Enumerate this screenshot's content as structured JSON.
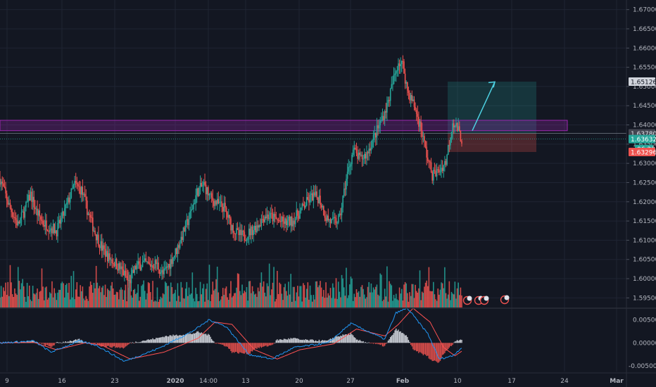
{
  "colors": {
    "background": "#131722",
    "grid": "#1f2433",
    "up": "#26a69a",
    "down": "#ef5350",
    "zone": "#9c27b0",
    "macd_line": "#2196f3",
    "signal_line": "#ff5252",
    "arrow": "#4dd0e1",
    "target_box": "#26a69a",
    "stop_box": "#ef5350"
  },
  "chart_data": [
    {
      "type": "candlestick",
      "title": "",
      "xlabel": "",
      "ylabel": "",
      "ylim": [
        1.5925,
        1.6725
      ],
      "y_ticks": [
        "1.67000",
        "1.66500",
        "1.66000",
        "1.65500",
        "1.65000",
        "1.64500",
        "1.64000",
        "1.63500",
        "1.63000",
        "1.62500",
        "1.62000",
        "1.61500",
        "1.61000",
        "1.60500",
        "1.60000",
        "1.59500"
      ],
      "x_ticks": [
        "9",
        "16",
        "23",
        "2020",
        "14:00",
        "13",
        "20",
        "27",
        "Feb",
        "10",
        "17",
        "24",
        "Mar"
      ],
      "x_ticks_bold": [
        "2020",
        "Feb",
        "Mar"
      ],
      "grid": true,
      "price_tags": [
        {
          "label": "1.65126",
          "value": 1.65126,
          "style": "target"
        },
        {
          "label": "1.63780",
          "value": 1.6378,
          "style": "current"
        },
        {
          "label": "1.63632",
          "value": 1.63632,
          "style": "last"
        },
        {
          "label": "06:22",
          "value": null,
          "style": "timer"
        },
        {
          "label": "1.63296",
          "value": 1.63296,
          "style": "stop"
        }
      ],
      "candle_anchor_closes": [
        [
          0,
          1.626
        ],
        [
          8,
          1.619
        ],
        [
          16,
          1.614
        ],
        [
          22,
          1.618
        ],
        [
          27,
          1.622
        ],
        [
          32,
          1.6175
        ],
        [
          38,
          1.6145
        ],
        [
          44,
          1.6135
        ],
        [
          50,
          1.6125
        ],
        [
          55,
          1.616
        ],
        [
          60,
          1.62
        ],
        [
          66,
          1.6245
        ],
        [
          72,
          1.623
        ],
        [
          78,
          1.617
        ],
        [
          84,
          1.612
        ],
        [
          90,
          1.608
        ],
        [
          96,
          1.6055
        ],
        [
          102,
          1.604
        ],
        [
          108,
          1.602
        ],
        [
          114,
          1.599
        ],
        [
          120,
          1.603
        ],
        [
          126,
          1.604
        ],
        [
          132,
          1.6035
        ],
        [
          138,
          1.604
        ],
        [
          144,
          1.601
        ],
        [
          150,
          1.604
        ],
        [
          156,
          1.6075
        ],
        [
          162,
          1.612
        ],
        [
          168,
          1.6165
        ],
        [
          174,
          1.6225
        ],
        [
          180,
          1.6245
        ],
        [
          186,
          1.621
        ],
        [
          192,
          1.6195
        ],
        [
          198,
          1.6185
        ],
        [
          204,
          1.614
        ],
        [
          210,
          1.6115
        ],
        [
          216,
          1.611
        ],
        [
          222,
          1.6125
        ],
        [
          228,
          1.614
        ],
        [
          234,
          1.6165
        ],
        [
          240,
          1.616
        ],
        [
          246,
          1.615
        ],
        [
          252,
          1.6145
        ],
        [
          258,
          1.615
        ],
        [
          264,
          1.617
        ],
        [
          270,
          1.6195
        ],
        [
          276,
          1.6215
        ],
        [
          282,
          1.621
        ],
        [
          288,
          1.616
        ],
        [
          294,
          1.6145
        ],
        [
          300,
          1.6155
        ],
        [
          306,
          1.626
        ],
        [
          312,
          1.6335
        ],
        [
          318,
          1.631
        ],
        [
          324,
          1.6325
        ],
        [
          330,
          1.6365
        ],
        [
          336,
          1.6405
        ],
        [
          342,
          1.645
        ],
        [
          348,
          1.652
        ],
        [
          352,
          1.6565
        ],
        [
          356,
          1.6555
        ],
        [
          360,
          1.649
        ],
        [
          366,
          1.645
        ],
        [
          372,
          1.639
        ],
        [
          378,
          1.631
        ],
        [
          382,
          1.627
        ],
        [
          388,
          1.628
        ],
        [
          394,
          1.6305
        ],
        [
          400,
          1.641
        ],
        [
          404,
          1.639
        ],
        [
          408,
          1.6363
        ]
      ],
      "volume_note": "volume histogram shown without axis",
      "zones": [
        {
          "name": "resistance-zone",
          "from": 1.6385,
          "to": 1.6412
        }
      ],
      "position": {
        "entry": 1.6378,
        "target": 1.65126,
        "stop": 1.63296
      }
    },
    {
      "type": "macd",
      "title": "",
      "ylim": [
        -0.0062,
        0.0072
      ],
      "y_ticks": [
        "0.00500",
        "0.00000",
        "-0.00500"
      ],
      "series": [
        {
          "name": "",
          "role": "macd",
          "anchors": [
            [
              0,
              0.0
            ],
            [
              30,
              0.0004
            ],
            [
              45,
              -0.002
            ],
            [
              70,
              0.0004
            ],
            [
              85,
              -0.0005
            ],
            [
              110,
              -0.004
            ],
            [
              140,
              -0.0012
            ],
            [
              170,
              0.0025
            ],
            [
              185,
              0.005
            ],
            [
              200,
              0.0035
            ],
            [
              220,
              -0.0025
            ],
            [
              240,
              -0.0035
            ],
            [
              260,
              -0.001
            ],
            [
              290,
              0.0
            ],
            [
              310,
              0.0042
            ],
            [
              340,
              0.0008
            ],
            [
              350,
              0.0065
            ],
            [
              360,
              0.0075
            ],
            [
              378,
              0.002
            ],
            [
              388,
              -0.0035
            ],
            [
              400,
              -0.0028
            ],
            [
              408,
              -0.001
            ]
          ]
        },
        {
          "name": "",
          "role": "signal",
          "anchors": [
            [
              0,
              0.0
            ],
            [
              30,
              0.0001
            ],
            [
              50,
              -0.0015
            ],
            [
              75,
              0.0
            ],
            [
              90,
              -0.0005
            ],
            [
              115,
              -0.0035
            ],
            [
              145,
              -0.002
            ],
            [
              175,
              0.001
            ],
            [
              190,
              0.0045
            ],
            [
              205,
              0.004
            ],
            [
              225,
              -0.0015
            ],
            [
              245,
              -0.0035
            ],
            [
              265,
              -0.0015
            ],
            [
              295,
              -0.0002
            ],
            [
              315,
              0.003
            ],
            [
              340,
              0.0015
            ],
            [
              352,
              0.004
            ],
            [
              365,
              0.0075
            ],
            [
              380,
              0.0045
            ],
            [
              392,
              -0.001
            ],
            [
              402,
              -0.0028
            ],
            [
              408,
              -0.0018
            ]
          ]
        }
      ]
    }
  ]
}
